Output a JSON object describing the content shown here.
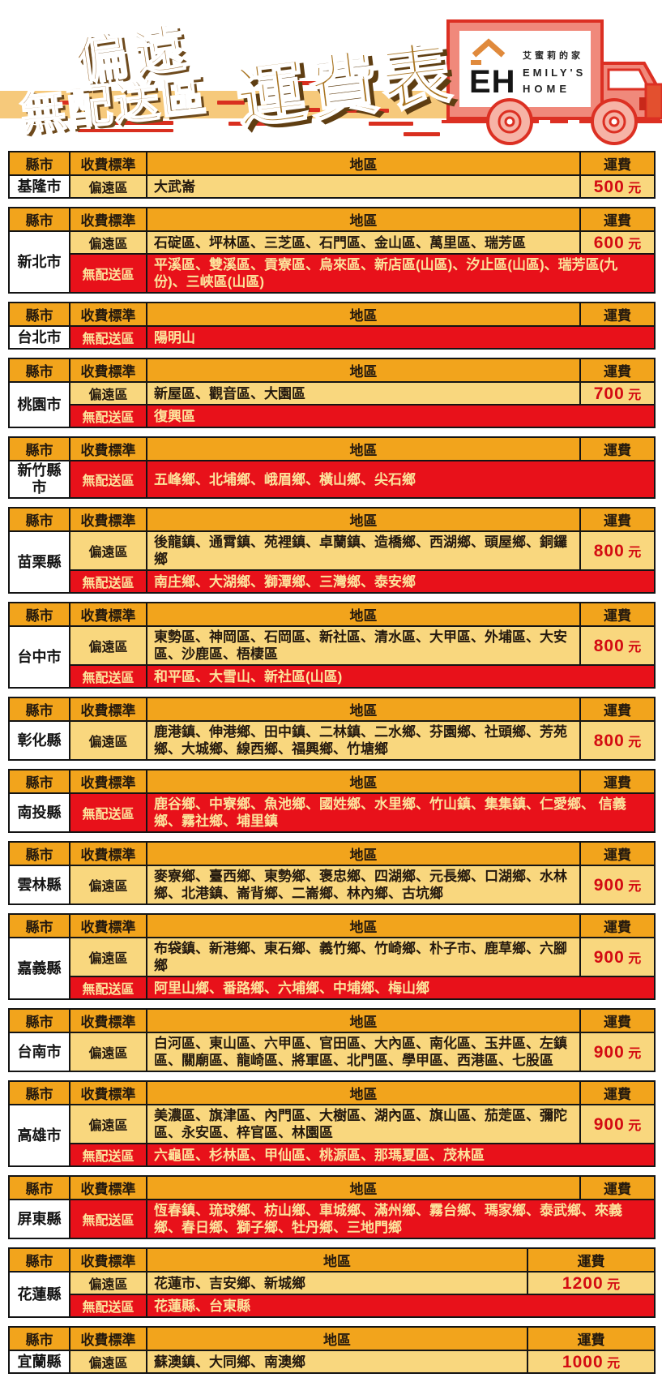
{
  "banner": {
    "title_line1": "偏遠",
    "title_line2": "無配送區",
    "title_main": "運費表",
    "logo": {
      "eh": "EH",
      "brand_zh": "艾蜜莉的家",
      "brand_en1": "EMILY'S",
      "brand_en2": "HOME"
    }
  },
  "headers": {
    "county": "縣市",
    "standard": "收費標準",
    "region": "地區",
    "fee": "運費"
  },
  "labels": {
    "remote": "偏遠區",
    "no_delivery": "無配送區",
    "fee_unit": "元"
  },
  "colors": {
    "header_gold": "#F2A41C",
    "row_yellow": "#F9D77E",
    "alert_red": "#E8111A",
    "fee_text_red": "#D30B12",
    "cream_text": "#FCE39B",
    "title_brown": "#9C6B2F",
    "title_shadow": "#6E4A1D",
    "band_tan": "#F6C97B",
    "dash_red": "#D92F1F",
    "truck_salmon": "#F0897B",
    "truck_outline": "#DC3023"
  },
  "tables": [
    {
      "county": "基隆市",
      "wide_fee": false,
      "rows": [
        {
          "type": "remote",
          "regions": "大武崙",
          "fee": "500"
        }
      ]
    },
    {
      "county": "新北市",
      "wide_fee": false,
      "rows": [
        {
          "type": "remote",
          "regions": "石碇區、坪林區、三芝區、石門區、金山區、萬里區、瑞芳區",
          "fee": "600"
        },
        {
          "type": "no_delivery",
          "regions": "平溪區、雙溪區、貢寮區、烏來區、新店區(山區)、汐止區(山區)、瑞芳區(九份)、三峽區(山區)"
        }
      ]
    },
    {
      "county": "台北市",
      "wide_fee": false,
      "rows": [
        {
          "type": "no_delivery",
          "regions": "陽明山"
        }
      ]
    },
    {
      "county": "桃園市",
      "wide_fee": false,
      "rows": [
        {
          "type": "remote",
          "regions": "新屋區、觀音區、大園區",
          "fee": "700"
        },
        {
          "type": "no_delivery",
          "regions": "復興區"
        }
      ]
    },
    {
      "county": "新竹縣市",
      "wide_fee": false,
      "rows": [
        {
          "type": "no_delivery",
          "regions": "五峰鄉、北埔鄉、峨眉鄉、橫山鄉、尖石鄉"
        }
      ]
    },
    {
      "county": "苗栗縣",
      "wide_fee": false,
      "rows": [
        {
          "type": "remote",
          "regions": "後龍鎮、通霄鎮、苑裡鎮、卓蘭鎮、造橋鄉、西湖鄉、頭屋鄉、銅鑼鄉",
          "fee": "800"
        },
        {
          "type": "no_delivery",
          "regions": "南庄鄉、大湖鄉、獅潭鄉、三灣鄉、泰安鄉"
        }
      ]
    },
    {
      "county": "台中市",
      "wide_fee": false,
      "rows": [
        {
          "type": "remote",
          "regions": "東勢區、神岡區、石岡區、新社區、清水區、大甲區、外埔區、大安區、沙鹿區、梧棲區",
          "fee": "800"
        },
        {
          "type": "no_delivery",
          "regions": "和平區、大雪山、新社區(山區)"
        }
      ]
    },
    {
      "county": "彰化縣",
      "wide_fee": false,
      "rows": [
        {
          "type": "remote",
          "regions": "鹿港鎮、伸港鄉、田中鎮、二林鎮、二水鄉、芬園鄉、社頭鄉、芳苑鄉、大城鄉、線西鄉、福興鄉、竹塘鄉",
          "fee": "800"
        }
      ]
    },
    {
      "county": "南投縣",
      "wide_fee": false,
      "rows": [
        {
          "type": "no_delivery",
          "regions": "鹿谷鄉、中寮鄉、魚池鄉、國姓鄉、水里鄉、竹山鎮、集集鎮、仁愛鄉、 信義鄉、霧社鄉、埔里鎮"
        }
      ]
    },
    {
      "county": "雲林縣",
      "wide_fee": false,
      "rows": [
        {
          "type": "remote",
          "regions": "麥寮鄉、臺西鄉、東勢鄉、褒忠鄉、四湖鄉、元長鄉、口湖鄉、水林鄉、北港鎮、崙背鄉、二崙鄉、林內鄉、古坑鄉",
          "fee": "900"
        }
      ]
    },
    {
      "county": "嘉義縣",
      "wide_fee": false,
      "rows": [
        {
          "type": "remote",
          "regions": "布袋鎮、新港鄉、東石鄉、義竹鄉、竹崎鄉、朴子市、鹿草鄉、六腳鄉",
          "fee": "900"
        },
        {
          "type": "no_delivery",
          "regions": "阿里山鄉、番路鄉、六埔鄉、中埔鄉、梅山鄉"
        }
      ]
    },
    {
      "county": "台南市",
      "wide_fee": false,
      "rows": [
        {
          "type": "remote",
          "regions": "白河區、東山區、六甲區、官田區、大內區、南化區、玉井區、左鎮區、關廟區、龍崎區、將軍區、北門區、學甲區、西港區、七股區",
          "fee": "900"
        }
      ]
    },
    {
      "county": "高雄市",
      "wide_fee": false,
      "rows": [
        {
          "type": "remote",
          "regions": "美濃區、旗津區、內門區、大樹區、湖內區、旗山區、茄萣區、彌陀區、永安區、梓官區、林園區",
          "fee": "900"
        },
        {
          "type": "no_delivery",
          "regions": "六龜區、杉林區、甲仙區、桃源區、那瑪夏區、茂林區"
        }
      ]
    },
    {
      "county": "屏東縣",
      "wide_fee": false,
      "rows": [
        {
          "type": "no_delivery",
          "regions": "恆春鎮、琉球鄉、枋山鄉、車城鄉、滿州鄉、霧台鄉、瑪家鄉、泰武鄉、來義鄉、春日鄉、獅子鄉、牡丹鄉、三地門鄉"
        }
      ]
    },
    {
      "county": "花蓮縣",
      "wide_fee": true,
      "rows": [
        {
          "type": "remote",
          "regions": "花蓮市、吉安鄉、新城鄉",
          "fee": "1200"
        },
        {
          "type": "no_delivery",
          "regions": "花蓮縣、台東縣"
        }
      ]
    },
    {
      "county": "宜蘭縣",
      "wide_fee": true,
      "rows": [
        {
          "type": "remote",
          "regions": "蘇澳鎮、大同鄉、南澳鄉",
          "fee": "1000"
        }
      ]
    }
  ]
}
